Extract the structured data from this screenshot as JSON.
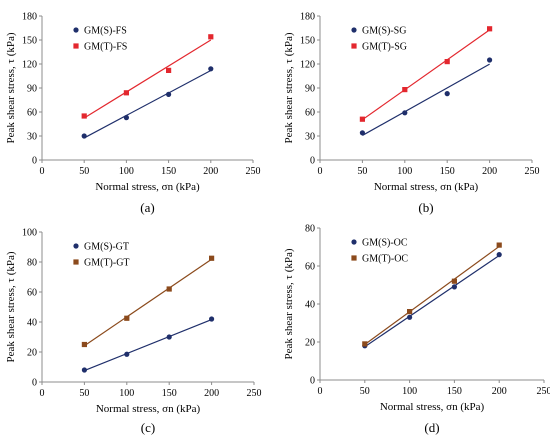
{
  "chart_data": [
    {
      "type": "scatter",
      "panel_label": "(a)",
      "xlabel": "Normal stress, σn (kPa)",
      "ylabel": "Peak shear stress, τ (kPa)",
      "xlim": [
        0,
        250
      ],
      "ylim": [
        0,
        180
      ],
      "xticks": [
        "0",
        "50",
        "100",
        "150",
        "200",
        "250"
      ],
      "yticks": [
        "0",
        "30",
        "60",
        "90",
        "120",
        "150",
        "180"
      ],
      "grid": false,
      "legend_position": "top-left",
      "trendlines": true,
      "series": [
        {
          "name": "GM(S)-FS",
          "color": "#1f2f6b",
          "marker": "circle",
          "x": [
            50,
            100,
            150,
            200
          ],
          "y": [
            30,
            53,
            82,
            114
          ]
        },
        {
          "name": "GM(T)-FS",
          "color": "#e3272e",
          "marker": "square",
          "x": [
            50,
            100,
            150,
            200
          ],
          "y": [
            55,
            84,
            112,
            154
          ]
        }
      ]
    },
    {
      "type": "scatter",
      "panel_label": "(b)",
      "xlabel": "Normal stress, σn (kPa)",
      "ylabel": "Peak shear stress, τ (kPa)",
      "xlim": [
        0,
        250
      ],
      "ylim": [
        0,
        180
      ],
      "xticks": [
        "0",
        "50",
        "100",
        "150",
        "200",
        "250"
      ],
      "yticks": [
        "0",
        "30",
        "60",
        "90",
        "120",
        "150",
        "180"
      ],
      "grid": false,
      "legend_position": "top-left",
      "trendlines": true,
      "series": [
        {
          "name": "GM(S)-SG",
          "color": "#1f2f6b",
          "marker": "circle",
          "x": [
            50,
            100,
            150,
            200
          ],
          "y": [
            34,
            59,
            83,
            125
          ]
        },
        {
          "name": "GM(T)-SG",
          "color": "#e3272e",
          "marker": "square",
          "x": [
            50,
            100,
            150,
            200
          ],
          "y": [
            51,
            88,
            123,
            164
          ]
        }
      ]
    },
    {
      "type": "scatter",
      "panel_label": "(c)",
      "xlabel": "Normal stress, σn (kPa)",
      "ylabel": "Peak shear stress, τ (kPa)",
      "xlim": [
        0,
        250
      ],
      "ylim": [
        0,
        100
      ],
      "xticks": [
        "0",
        "50",
        "100",
        "150",
        "200",
        "250"
      ],
      "yticks": [
        "0",
        "20",
        "40",
        "60",
        "80",
        "100"
      ],
      "grid": false,
      "legend_position": "top-left",
      "trendlines": true,
      "series": [
        {
          "name": "GM(S)-GT",
          "color": "#1f2f6b",
          "marker": "circle",
          "x": [
            50,
            100,
            150,
            200
          ],
          "y": [
            8,
            18.5,
            30,
            42
          ]
        },
        {
          "name": "GM(T)-GT",
          "color": "#8b4a1c",
          "marker": "square",
          "x": [
            50,
            100,
            150,
            200
          ],
          "y": [
            25,
            42.5,
            62,
            82.5
          ]
        }
      ]
    },
    {
      "type": "scatter",
      "panel_label": "(d)",
      "xlabel": "Normal stress, σn (kPa)",
      "ylabel": "Peak shear stress, τ (kPa)",
      "xlim": [
        0,
        250
      ],
      "ylim": [
        0,
        80
      ],
      "xticks": [
        "0",
        "50",
        "100",
        "150",
        "200",
        "250"
      ],
      "yticks": [
        "0",
        "20",
        "40",
        "60",
        "80"
      ],
      "grid": false,
      "legend_position": "top-left",
      "trendlines": true,
      "series": [
        {
          "name": "GM(S)-OC",
          "color": "#1f2f6b",
          "marker": "circle",
          "x": [
            50,
            100,
            150,
            200
          ],
          "y": [
            18,
            33,
            49,
            66
          ]
        },
        {
          "name": "GM(T)-OC",
          "color": "#8b4a1c",
          "marker": "square",
          "x": [
            50,
            100,
            150,
            200
          ],
          "y": [
            19,
            36,
            52,
            71
          ]
        }
      ]
    }
  ]
}
